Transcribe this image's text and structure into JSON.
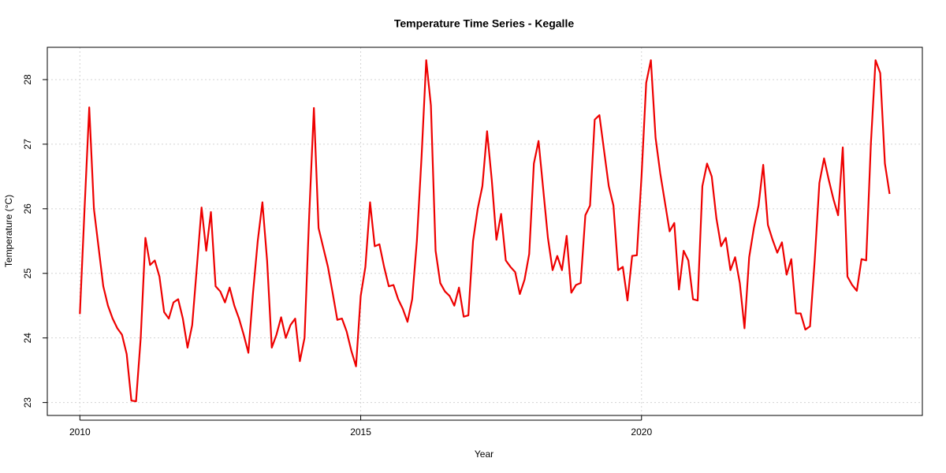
{
  "chart_data": {
    "type": "line",
    "title": "Temperature Time Series - Kegalle",
    "x_label": "Year",
    "y_label": "Temperature (°C)",
    "x": [
      2010,
      2010.0833,
      2010.1667,
      2010.25,
      2010.3333,
      2010.4167,
      2010.5,
      2010.5833,
      2010.6667,
      2010.75,
      2010.8333,
      2010.9167,
      2011,
      2011.0833,
      2011.1667,
      2011.25,
      2011.3333,
      2011.4167,
      2011.5,
      2011.5833,
      2011.6667,
      2011.75,
      2011.8333,
      2011.9167,
      2012,
      2012.0833,
      2012.1667,
      2012.25,
      2012.3333,
      2012.4167,
      2012.5,
      2012.5833,
      2012.6667,
      2012.75,
      2012.8333,
      2012.9167,
      2013,
      2013.0833,
      2013.1667,
      2013.25,
      2013.3333,
      2013.4167,
      2013.5,
      2013.5833,
      2013.6667,
      2013.75,
      2013.8333,
      2013.9167,
      2014,
      2014.0833,
      2014.1667,
      2014.25,
      2014.3333,
      2014.4167,
      2014.5,
      2014.5833,
      2014.6667,
      2014.75,
      2014.8333,
      2014.9167,
      2015,
      2015.0833,
      2015.1667,
      2015.25,
      2015.3333,
      2015.4167,
      2015.5,
      2015.5833,
      2015.6667,
      2015.75,
      2015.8333,
      2015.9167,
      2016,
      2016.0833,
      2016.1667,
      2016.25,
      2016.3333,
      2016.4167,
      2016.5,
      2016.5833,
      2016.6667,
      2016.75,
      2016.8333,
      2016.9167,
      2017,
      2017.0833,
      2017.1667,
      2017.25,
      2017.3333,
      2017.4167,
      2017.5,
      2017.5833,
      2017.6667,
      2017.75,
      2017.8333,
      2017.9167,
      2018,
      2018.0833,
      2018.1667,
      2018.25,
      2018.3333,
      2018.4167,
      2018.5,
      2018.5833,
      2018.6667,
      2018.75,
      2018.8333,
      2018.9167,
      2019,
      2019.0833,
      2019.1667,
      2019.25,
      2019.3333,
      2019.4167,
      2019.5,
      2019.5833,
      2019.6667,
      2019.75,
      2019.8333,
      2019.9167,
      2020,
      2020.0833,
      2020.1667,
      2020.25,
      2020.3333,
      2020.4167,
      2020.5,
      2020.5833,
      2020.6667,
      2020.75,
      2020.8333,
      2020.9167,
      2021,
      2021.0833,
      2021.1667,
      2021.25,
      2021.3333,
      2021.4167,
      2021.5,
      2021.5833,
      2021.6667,
      2021.75,
      2021.8333,
      2021.9167,
      2022,
      2022.0833,
      2022.1667,
      2022.25,
      2022.3333,
      2022.4167,
      2022.5,
      2022.5833,
      2022.6667,
      2022.75,
      2022.8333,
      2022.9167,
      2023,
      2023.0833,
      2023.1667,
      2023.25,
      2023.3333,
      2023.4167,
      2023.5,
      2023.5833,
      2023.6667,
      2023.75,
      2023.8333,
      2023.9167,
      2024,
      2024.0833,
      2024.1667,
      2024.25,
      2024.3333,
      2024.4167
    ],
    "series": [
      {
        "color": "#ee0000",
        "values": [
          24.37,
          26.0,
          27.57,
          26.0,
          25.4,
          24.8,
          24.5,
          24.3,
          24.15,
          24.05,
          23.75,
          23.03,
          23.02,
          24.0,
          25.55,
          25.13,
          25.2,
          24.95,
          24.4,
          24.3,
          24.55,
          24.6,
          24.3,
          23.85,
          24.2,
          25.1,
          26.02,
          25.35,
          25.95,
          24.8,
          24.72,
          24.55,
          24.78,
          24.5,
          24.3,
          24.05,
          23.77,
          24.7,
          25.5,
          26.1,
          25.2,
          23.85,
          24.05,
          24.32,
          24.0,
          24.2,
          24.3,
          23.64,
          24.0,
          25.9,
          27.56,
          25.7,
          25.4,
          25.1,
          24.7,
          24.28,
          24.3,
          24.1,
          23.8,
          23.56,
          24.65,
          25.1,
          26.1,
          25.42,
          25.45,
          25.1,
          24.8,
          24.82,
          24.6,
          24.45,
          24.25,
          24.6,
          25.5,
          26.8,
          28.3,
          27.6,
          25.35,
          24.85,
          24.72,
          24.65,
          24.5,
          24.78,
          24.33,
          24.35,
          25.5,
          26.0,
          26.35,
          27.2,
          26.45,
          25.52,
          25.92,
          25.2,
          25.1,
          25.02,
          24.68,
          24.9,
          25.3,
          26.7,
          27.05,
          26.3,
          25.55,
          25.05,
          25.27,
          25.05,
          25.58,
          24.7,
          24.82,
          24.85,
          25.9,
          26.05,
          27.38,
          27.45,
          26.9,
          26.35,
          26.05,
          25.05,
          25.1,
          24.58,
          25.27,
          25.28,
          26.5,
          27.95,
          28.3,
          27.1,
          26.55,
          26.1,
          25.65,
          25.78,
          24.75,
          25.35,
          25.2,
          24.6,
          24.58,
          26.35,
          26.7,
          26.5,
          25.85,
          25.42,
          25.55,
          25.05,
          25.25,
          24.85,
          24.15,
          25.25,
          25.7,
          26.05,
          26.68,
          25.75,
          25.52,
          25.32,
          25.48,
          24.98,
          25.22,
          24.38,
          24.38,
          24.13,
          24.18,
          25.2,
          26.4,
          26.78,
          26.45,
          26.15,
          25.9,
          26.95,
          24.95,
          24.82,
          24.73,
          25.22,
          25.2,
          27.0,
          28.3,
          28.1,
          26.7,
          26.23
        ]
      }
    ],
    "xlim": [
      2009.42,
      2025.0
    ],
    "xticks": [
      2010,
      2015,
      2020
    ],
    "ylim": [
      22.8,
      28.5
    ],
    "yticks": [
      23,
      24,
      25,
      26,
      27,
      28
    ],
    "grid": true
  }
}
